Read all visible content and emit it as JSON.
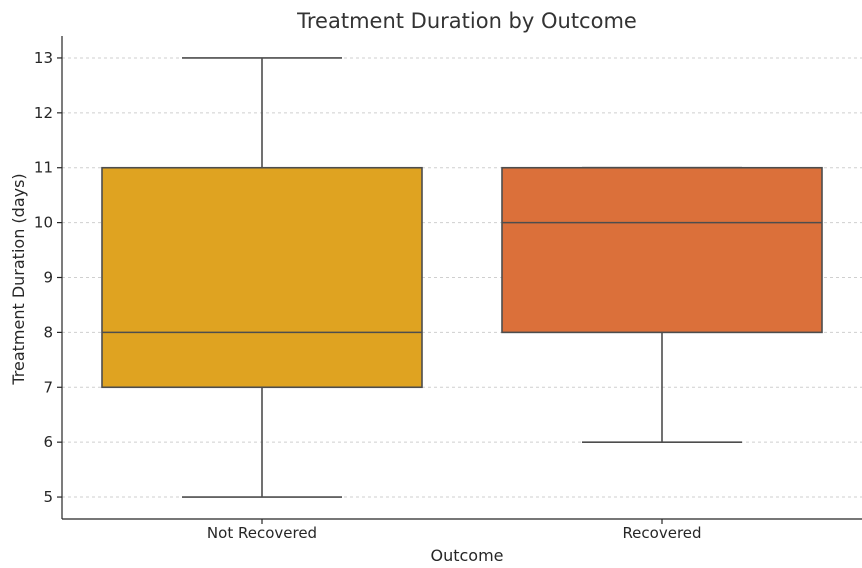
{
  "chart_data": {
    "type": "box",
    "title": "Treatment Duration by Outcome",
    "xlabel": "Outcome",
    "ylabel": "Treatment Duration (days)",
    "ylim": [
      4.6,
      13.4
    ],
    "yticks": [
      5,
      6,
      7,
      8,
      9,
      10,
      11,
      12,
      13
    ],
    "grid": true,
    "categories": [
      "Not Recovered",
      "Recovered"
    ],
    "boxes": [
      {
        "category": "Not Recovered",
        "min": 5,
        "q1": 7,
        "median": 8,
        "q3": 11,
        "max": 13,
        "color": "#DFA321"
      },
      {
        "category": "Recovered",
        "min": 6,
        "q1": 8,
        "median": 10,
        "q3": 11,
        "max": 11,
        "color": "#DB703A"
      }
    ]
  }
}
